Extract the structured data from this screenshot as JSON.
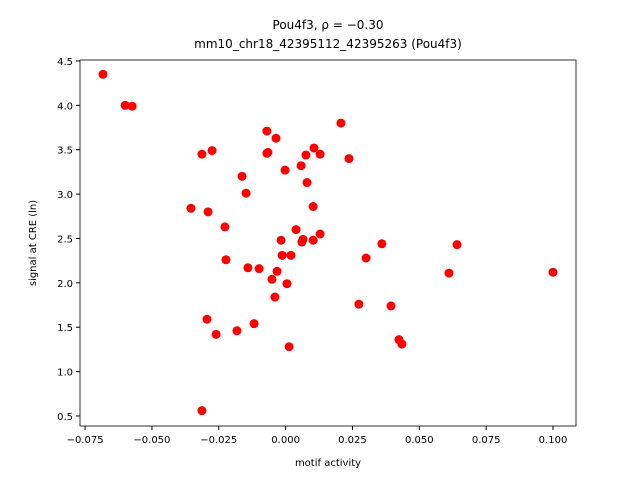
{
  "chart_data": {
    "type": "scatter",
    "title": "Pou4f3, ρ = −0.30",
    "subtitle": "mm10_chr18_42395112_42395263 (Pou4f3)",
    "x_label": "motif activity",
    "y_label": "signal at CRE (ln)",
    "color": "#ff0000",
    "x": [
      -0.0683,
      -0.06,
      -0.0574,
      -0.0313,
      -0.0275,
      -0.0354,
      -0.029,
      -0.0227,
      -0.0223,
      -0.0163,
      -0.0148,
      -0.0141,
      -0.0099,
      -0.007,
      -0.0066,
      -0.007,
      -0.0036,
      -0.0002,
      -0.0051,
      -0.0032,
      -0.004,
      0.0005,
      -0.0017,
      -0.0013,
      0.002,
      0.0039,
      0.0061,
      0.0065,
      0.0058,
      0.0076,
      0.008,
      0.0106,
      0.0129,
      0.0103,
      0.0103,
      0.0129,
      0.0207,
      0.0237,
      -0.0294,
      -0.026,
      -0.0182,
      -0.0118,
      -0.0313,
      0.0013,
      0.0274,
      0.0301,
      0.036,
      0.0394,
      0.0424,
      0.0435,
      0.0611,
      0.0641,
      0.1
    ],
    "values": [
      4.35,
      4.0,
      3.99,
      3.45,
      3.49,
      2.84,
      2.8,
      2.63,
      2.26,
      3.2,
      3.01,
      2.17,
      2.16,
      3.71,
      3.47,
      3.46,
      3.63,
      3.27,
      2.04,
      2.13,
      1.84,
      1.99,
      2.48,
      2.31,
      2.31,
      2.6,
      2.46,
      2.49,
      3.32,
      3.44,
      3.13,
      3.52,
      3.45,
      2.86,
      2.48,
      2.55,
      3.8,
      3.4,
      1.59,
      1.42,
      1.46,
      1.54,
      0.56,
      1.28,
      1.76,
      2.28,
      2.44,
      1.74,
      1.36,
      1.31,
      2.11,
      2.43,
      2.12
    ],
    "xlim": [
      -0.0769,
      0.1086
    ],
    "ylim": [
      0.387,
      4.511
    ],
    "xticks": [
      {
        "value": -0.075,
        "label": "−0.075"
      },
      {
        "value": -0.05,
        "label": "−0.050"
      },
      {
        "value": -0.025,
        "label": "−0.025"
      },
      {
        "value": 0,
        "label": "0.000"
      },
      0.025,
      {
        "value": 0.05,
        "label": "0.050"
      },
      0.075,
      {
        "value": 0.1,
        "label": "0.100"
      }
    ],
    "yticks": [
      0.5,
      {
        "value": 1,
        "label": "1.0"
      },
      1.5,
      {
        "value": 2,
        "label": "2.0"
      },
      2.5,
      {
        "value": 3,
        "label": "3.0"
      },
      3.5,
      {
        "value": 4,
        "label": "4.0"
      },
      4.5
    ],
    "grid": false
  }
}
